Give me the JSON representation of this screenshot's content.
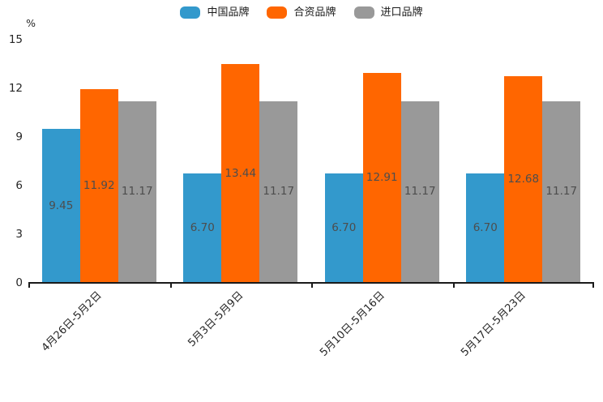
{
  "chart_data": {
    "type": "bar",
    "title": "",
    "unit_label": "%",
    "categories": [
      "4月26日-5月2日",
      "5月3日-5月9日",
      "5月10日-5月16日",
      "5月17日-5月23日"
    ],
    "series": [
      {
        "name": "中国品牌",
        "color": "#3399cc",
        "values": [
          9.45,
          6.7,
          6.7,
          6.7
        ],
        "value_labels": [
          "9.45",
          "6.70",
          "6.70",
          "6.70"
        ]
      },
      {
        "name": "合资品牌",
        "color": "#ff6600",
        "values": [
          11.92,
          13.44,
          12.91,
          12.68
        ],
        "value_labels": [
          "11.92",
          "13.44",
          "12.91",
          "12.68"
        ]
      },
      {
        "name": "进口品牌",
        "color": "#999999",
        "values": [
          11.17,
          11.17,
          11.17,
          11.17
        ],
        "value_labels": [
          "11.17",
          "11.17",
          "11.17",
          "11.17"
        ]
      }
    ],
    "ylim": [
      0,
      15
    ],
    "yticks": [
      0,
      3,
      6,
      9,
      12,
      15
    ],
    "legend_position": "top",
    "grid": false,
    "axis_color": "#1a1a1a",
    "value_label_color": "#4d4d4d"
  }
}
